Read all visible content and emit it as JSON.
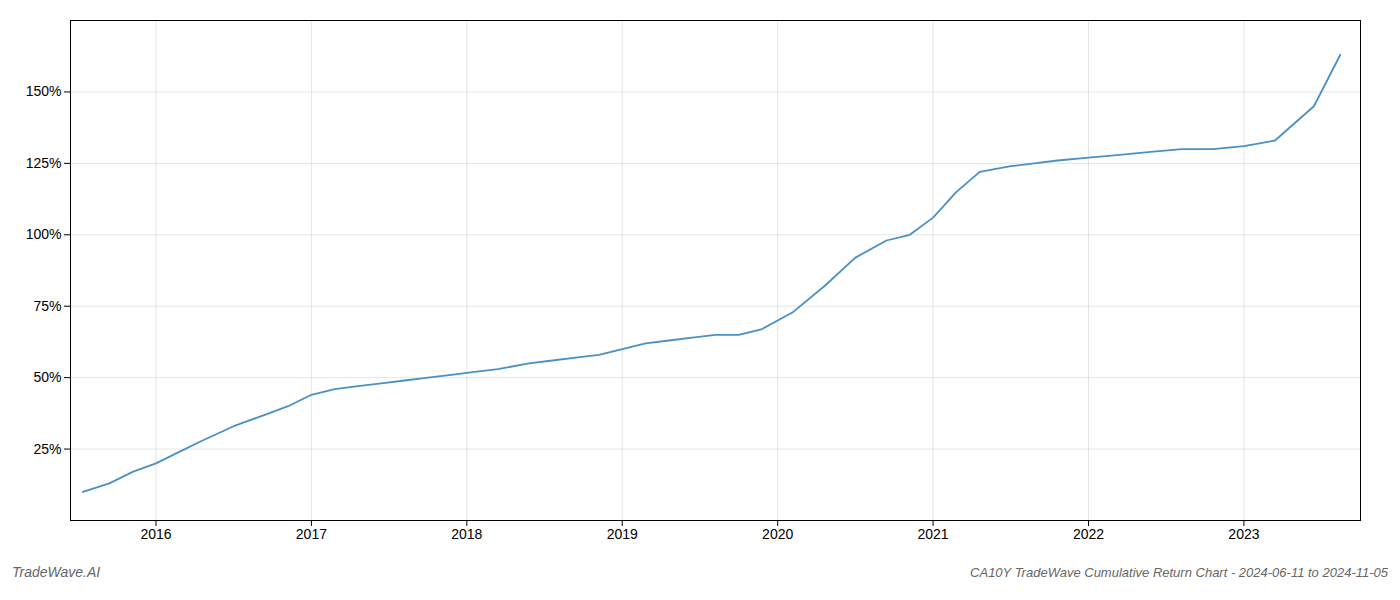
{
  "chart_data": {
    "type": "line",
    "title": "CA10Y TradeWave Cumulative Return Chart - 2024-06-11 to 2024-11-05",
    "annotations": [
      "TradeWave.AI"
    ],
    "color": "#4a90c4",
    "grid": true,
    "x": [
      2015.53,
      2015.7,
      2015.85,
      2016.0,
      2016.15,
      2016.3,
      2016.5,
      2016.7,
      2016.85,
      2017.0,
      2017.15,
      2017.3,
      2017.45,
      2017.6,
      2017.75,
      2017.9,
      2018.05,
      2018.2,
      2018.4,
      2018.55,
      2018.7,
      2018.85,
      2019.0,
      2019.15,
      2019.3,
      2019.45,
      2019.6,
      2019.75,
      2019.9,
      2020.1,
      2020.3,
      2020.5,
      2020.7,
      2020.85,
      2021.0,
      2021.15,
      2021.3,
      2021.5,
      2021.65,
      2021.8,
      2022.0,
      2022.2,
      2022.4,
      2022.6,
      2022.8,
      2023.0,
      2023.2,
      2023.45,
      2023.62
    ],
    "values": [
      10,
      13,
      17,
      20,
      24,
      28,
      33,
      37,
      40,
      44,
      46,
      47,
      48,
      49,
      50,
      51,
      52,
      53,
      55,
      56,
      57,
      58,
      60,
      62,
      63,
      64,
      65,
      65,
      67,
      73,
      82,
      92,
      98,
      100,
      106,
      115,
      122,
      124,
      125,
      126,
      127,
      128,
      129,
      130,
      130,
      131,
      133,
      145,
      163
    ],
    "xlim": [
      2015.45,
      2023.75
    ],
    "xticks": [
      2016,
      2017,
      2018,
      2019,
      2020,
      2021,
      2022,
      2023
    ],
    "ylim": [
      0,
      175
    ],
    "yticks": [
      {
        "value": 25,
        "label": "25%"
      },
      {
        "value": 50,
        "label": "50%"
      },
      {
        "value": 75,
        "label": "75%"
      },
      {
        "value": 100,
        "label": "100%"
      },
      {
        "value": 125,
        "label": "125%"
      },
      {
        "value": 150,
        "label": "150%"
      }
    ]
  }
}
